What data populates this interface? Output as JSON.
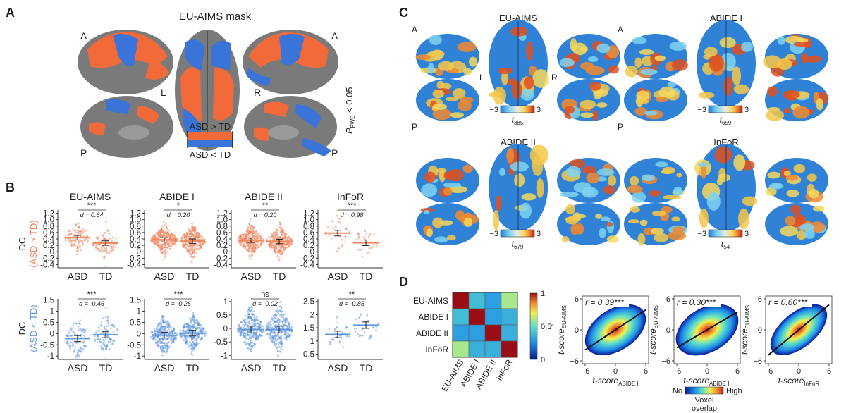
{
  "panels": {
    "A": {
      "letter": "A",
      "title": "EU-AIMS mask",
      "corner_anterior": "A",
      "corner_posterior": "P",
      "hemi_left": "L",
      "hemi_right": "R",
      "threshold_text": "P",
      "threshold_sub": "FWE",
      "threshold_tail": " < 0.05",
      "legend_up": "ASD > TD",
      "legend_down": "ASD < TD",
      "color_up": "#f26a3a",
      "color_down": "#3a74d8"
    },
    "B": {
      "letter": "B",
      "colors": {
        "asd_gt_td": "#f0825a",
        "asd_lt_td": "#5f96e0"
      },
      "ylabel_top_main": "DC",
      "ylabel_top_sub": "(ASD > TD)",
      "ylabel_bottom_main": "DC",
      "ylabel_bottom_sub": "(ASD < TD)",
      "group_labels": [
        "ASD",
        "TD"
      ],
      "datasets": [
        "EU-AIMS",
        "ABIDE I",
        "ABIDE II",
        "InFoR"
      ],
      "top_row": [
        {
          "sig": "***",
          "d": "d = 0.64",
          "yticks": [
            "1.2",
            "1.0",
            "0.8",
            "0.6",
            "0.4",
            "0.2",
            "0",
            "-0.2",
            "-0.4"
          ],
          "ylim": [
            -0.5,
            1.3
          ],
          "asd_mean": 0.44,
          "td_mean": 0.27,
          "asd_sd": 0.2,
          "td_sd": 0.2,
          "n_asd": 90,
          "n_td": 90
        },
        {
          "sig": "*",
          "d": "d = 0.20",
          "yticks": [
            "1.2",
            "1.0",
            "0.8",
            "0.6",
            "0.4",
            "0.2",
            "0",
            "-0.2",
            "-0.4"
          ],
          "ylim": [
            -0.5,
            1.3
          ],
          "asd_mean": 0.37,
          "td_mean": 0.33,
          "asd_sd": 0.2,
          "td_sd": 0.2,
          "n_asd": 260,
          "n_td": 260
        },
        {
          "sig": "**",
          "d": "d = 0.20",
          "yticks": [
            "1.2",
            "1.0",
            "0.8",
            "0.6",
            "0.4",
            "0.2",
            "0",
            "-0.2",
            "-0.4"
          ],
          "ylim": [
            -0.5,
            1.3
          ],
          "asd_mean": 0.36,
          "td_mean": 0.32,
          "asd_sd": 0.2,
          "td_sd": 0.2,
          "n_asd": 260,
          "n_td": 260
        },
        {
          "sig": "***",
          "d": "d = 0.98",
          "yticks": [
            "1.2",
            "1.0",
            "0.8",
            "0.6",
            "0.4",
            "0.2",
            "0",
            "-0.2",
            "-0.4"
          ],
          "ylim": [
            -0.5,
            1.3
          ],
          "asd_mean": 0.58,
          "td_mean": 0.28,
          "asd_sd": 0.25,
          "td_sd": 0.25,
          "n_asd": 28,
          "n_td": 28
        }
      ],
      "bottom_row": [
        {
          "sig": "***",
          "d": "d = -0.46",
          "yticks": [
            "1.5",
            "1",
            "0.5",
            "0",
            "-0.5",
            "-1"
          ],
          "ylim": [
            -1.15,
            1.55
          ],
          "asd_mean": -0.22,
          "td_mean": -0.05,
          "asd_sd": 0.38,
          "td_sd": 0.38,
          "n_asd": 90,
          "n_td": 90
        },
        {
          "sig": "***",
          "d": "d = -0.26",
          "yticks": [
            "1.5",
            "1",
            "0.5",
            "0",
            "-0.5",
            "-1"
          ],
          "ylim": [
            -1.15,
            1.55
          ],
          "asd_mean": -0.07,
          "td_mean": 0.02,
          "asd_sd": 0.36,
          "td_sd": 0.36,
          "n_asd": 260,
          "n_td": 260
        },
        {
          "sig": "ns",
          "d": "d = -0.02",
          "yticks": [
            "1",
            "0.5",
            "0",
            "-0.5",
            "-1"
          ],
          "ylim": [
            -1.15,
            1.1
          ],
          "asd_mean": -0.04,
          "td_mean": -0.04,
          "asd_sd": 0.36,
          "td_sd": 0.36,
          "n_asd": 260,
          "n_td": 260
        },
        {
          "sig": "**",
          "d": "d = -0.85",
          "yticks": [
            "2.5",
            "2",
            "1.5",
            "1",
            "0.5"
          ],
          "ylim": [
            0.3,
            2.6
          ],
          "asd_mean": 1.25,
          "td_mean": 1.6,
          "asd_sd": 0.35,
          "td_sd": 0.35,
          "n_asd": 28,
          "n_td": 28
        }
      ]
    },
    "C": {
      "letter": "C",
      "corner_anterior": "A",
      "corner_posterior": "P",
      "hemi_left": "L",
      "hemi_right": "R",
      "scale_min": "−3",
      "scale_max": "3",
      "groups": [
        {
          "title": "EU-AIMS",
          "t_sub": "385"
        },
        {
          "title": "ABIDE I",
          "t_sub": "659"
        },
        {
          "title": "ABIDE II",
          "t_sub": "679"
        },
        {
          "title": "InFoR",
          "t_sub": "54"
        }
      ]
    },
    "D": {
      "letter": "D",
      "matrix_labels": [
        "EU-AIMS",
        "ABIDE I",
        "ABIDE II",
        "InFoR"
      ],
      "matrix_values": [
        [
          1.0,
          0.39,
          0.3,
          0.6
        ],
        [
          0.39,
          1.0,
          0.3,
          0.35
        ],
        [
          0.3,
          0.3,
          1.0,
          0.35
        ],
        [
          0.6,
          0.35,
          0.35,
          1.0
        ]
      ],
      "colorbar_ticks": [
        "1",
        "0.5",
        "0"
      ],
      "colorbar_label": "r",
      "scatter": [
        {
          "r_label": "r = 0.39***",
          "x_main": "t-score",
          "x_sub": "ABIDE I",
          "y_main": "t-score",
          "y_sub": "EU-AIMS",
          "r": 0.39
        },
        {
          "r_label": "r = 0.30***",
          "x_main": "t-score",
          "x_sub": "ABIDE II",
          "y_main": "t-score",
          "y_sub": "EU-AIMS",
          "r": 0.3
        },
        {
          "r_label": "r = 0.60***",
          "x_main": "t-score",
          "x_sub": "InFoR",
          "y_main": "t-score",
          "y_sub": "EU-AIMS",
          "r": 0.6
        }
      ],
      "scatter_ticks": [
        "−6",
        "0",
        "6"
      ],
      "overlap_low": "No",
      "overlap_high": "High",
      "overlap_label_1": "Voxel",
      "overlap_label_2": "overlap"
    }
  }
}
